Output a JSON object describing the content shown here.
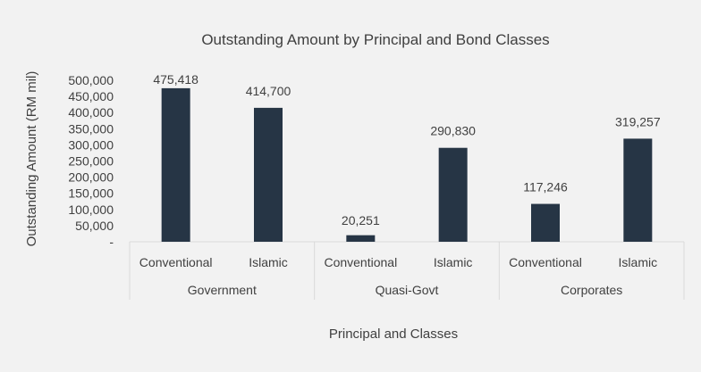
{
  "chart_data": {
    "type": "bar",
    "title": "Outstanding Amount by Principal and Bond Classes",
    "xlabel": "Principal and Classes",
    "ylabel": "Outstanding Amount (RM mil)",
    "ylim": [
      0,
      500000
    ],
    "yticks": [
      "-",
      "50,000",
      "100,000",
      "150,000",
      "200,000",
      "250,000",
      "300,000",
      "350,000",
      "400,000",
      "450,000",
      "500,000"
    ],
    "groups": [
      {
        "label": "Government",
        "categories": [
          "Conventional",
          "Islamic"
        ],
        "values": [
          475418,
          414700
        ],
        "value_labels": [
          "475,418",
          "414,700"
        ]
      },
      {
        "label": "Quasi-Govt",
        "categories": [
          "Conventional",
          "Islamic"
        ],
        "values": [
          20251,
          290830
        ],
        "value_labels": [
          "20,251",
          "290,830"
        ]
      },
      {
        "label": "Corporates",
        "categories": [
          "Conventional",
          "Islamic"
        ],
        "values": [
          117246,
          319257
        ],
        "value_labels": [
          "117,246",
          "319,257"
        ]
      }
    ],
    "bar_color": "#263545",
    "grid": false,
    "legend": "none"
  }
}
